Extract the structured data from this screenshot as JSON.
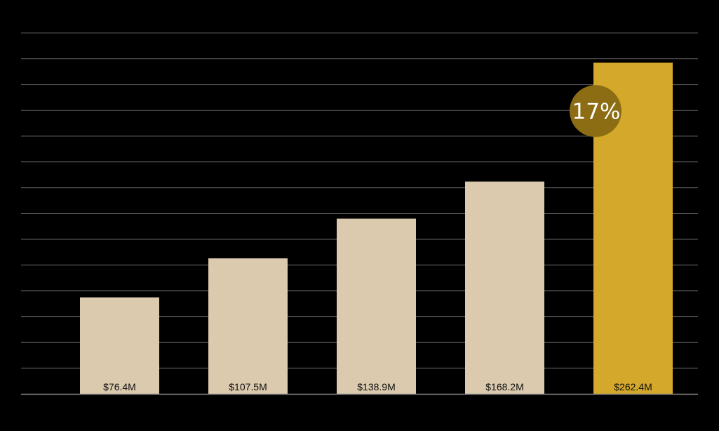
{
  "chart_data": {
    "type": "bar",
    "title": "",
    "xlabel": "",
    "ylabel": "",
    "ylim": [
      0,
      286
    ],
    "grid": true,
    "legend": "none",
    "values": [
      76.4,
      107.5,
      138.9,
      168.2,
      262.4
    ],
    "value_labels": [
      "$76.4M",
      "$107.5M",
      "$138.9M",
      "$168.2M",
      "$262.4M"
    ],
    "highlight_index": 4,
    "highlight_badge": "17%",
    "colors": {
      "background": "#000000",
      "bar": "#dbcaad",
      "highlight_bar": "#d4a82a",
      "badge": "#8c6d14",
      "grid": "#5a5a5a",
      "axis": "#8a8a8a",
      "label_text": "#111111",
      "badge_text": "#ffffff"
    }
  }
}
